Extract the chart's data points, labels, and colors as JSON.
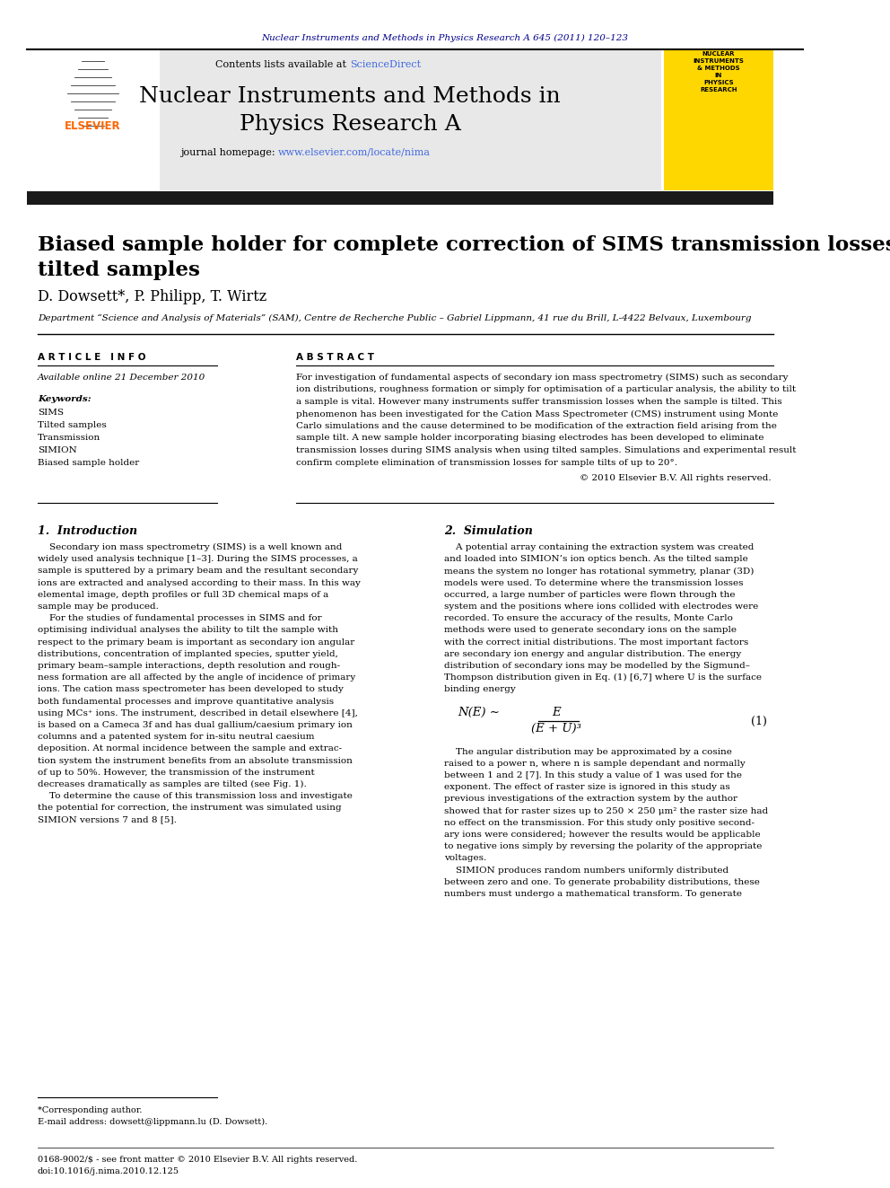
{
  "journal_ref": "Nuclear Instruments and Methods in Physics Research A 645 (2011) 120–123",
  "journal_ref_color": "#00008B",
  "header_text1": "Contents lists available at ",
  "header_sciencedirect": "ScienceDirect",
  "header_sciencedirect_color": "#4169E1",
  "journal_title_line1": "Nuclear Instruments and Methods in",
  "journal_title_line2": "Physics Research A",
  "journal_homepage_prefix": "journal homepage: ",
  "journal_homepage_url": "www.elsevier.com/locate/nima",
  "journal_homepage_url_color": "#4169E1",
  "paper_title": "Biased sample holder for complete correction of SIMS transmission losses with\ntilted samples",
  "authors": "D. Dowsett*, P. Philipp, T. Wirtz",
  "affiliation": "Department “Science and Analysis of Materials” (SAM), Centre de Recherche Public – Gabriel Lippmann, 41 rue du Brill, L-4422 Belvaux, Luxembourg",
  "article_info_title": "A R T I C L E   I N F O",
  "available_online": "Available online 21 December 2010",
  "keywords_label": "Keywords:",
  "keywords": [
    "SIMS",
    "Tilted samples",
    "Transmission",
    "SIMION",
    "Biased sample holder"
  ],
  "abstract_title": "A B S T R A C T",
  "copyright": "© 2010 Elsevier B.V. All rights reserved.",
  "section1_title": "1.  Introduction",
  "section2_title": "2.  Simulation",
  "footnote_star": "*Corresponding author.",
  "footnote_email": "E-mail address: dowsett@lippmann.lu (D. Dowsett).",
  "footer_line1": "0168-9002/$ - see front matter © 2010 Elsevier B.V. All rights reserved.",
  "footer_line2": "doi:10.1016/j.nima.2010.12.125",
  "bg_color": "#FFFFFF",
  "header_bg_color": "#E8E8E8",
  "elsevier_logo_color": "#FF6600",
  "journal_cover_bg": "#FFD700",
  "thick_bar_color": "#1a1a1a"
}
